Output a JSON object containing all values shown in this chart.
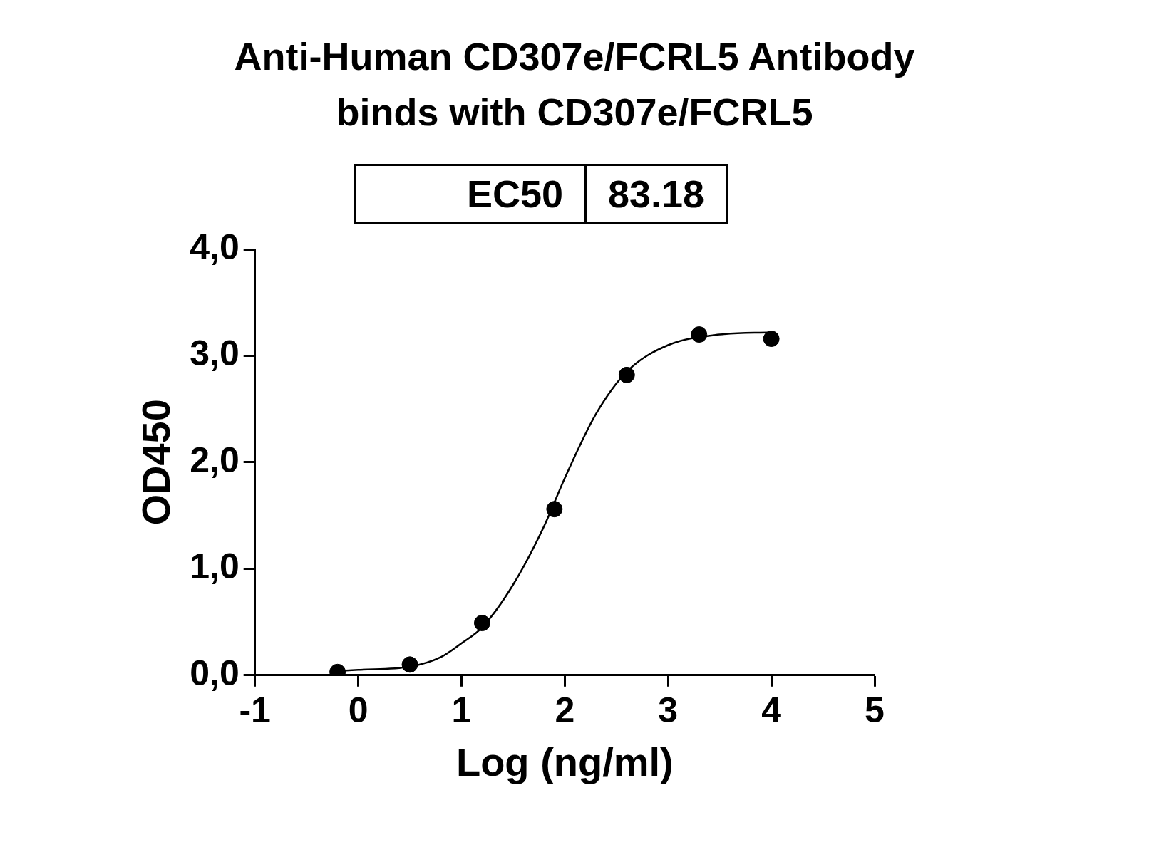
{
  "chart_data": {
    "type": "scatter",
    "title": "Anti-Human CD307e/FCRL5 Antibody\nbinds with CD307e/FCRL5",
    "xlabel": "Log (ng/ml)",
    "ylabel": "OD450",
    "annotations": [
      "EC50",
      "83.18"
    ],
    "series": [
      {
        "color": "#000000",
        "marker": "circle",
        "x": [
          -0.2,
          0.5,
          1.2,
          1.9,
          2.6,
          3.3,
          4.0
        ],
        "values": [
          0.03,
          0.1,
          0.49,
          1.56,
          2.82,
          3.2,
          3.16
        ]
      },
      {
        "type": "line",
        "color": "#000000",
        "marker": "none",
        "line_style": "solid",
        "x": [
          -0.2,
          0,
          0.5,
          0.8,
          1.0,
          1.2,
          1.5,
          1.8,
          2.0,
          2.3,
          2.6,
          3.0,
          3.5,
          4.0
        ],
        "values": [
          0.04,
          0.05,
          0.08,
          0.17,
          0.3,
          0.45,
          0.85,
          1.4,
          1.85,
          2.45,
          2.85,
          3.1,
          3.2,
          3.22
        ]
      }
    ],
    "xlim": [
      -1,
      5
    ],
    "xticks": [
      -1,
      0,
      1,
      2,
      3,
      4,
      5
    ],
    "ylim": [
      0,
      4
    ],
    "yticks": [
      {
        "value": 0,
        "label": "0,0"
      },
      {
        "value": 1,
        "label": "1,0"
      },
      {
        "value": 2,
        "label": "2,0"
      },
      {
        "value": 3,
        "label": "3,0"
      },
      {
        "value": 4,
        "label": "4,0"
      }
    ],
    "grid": false,
    "legend": false
  }
}
